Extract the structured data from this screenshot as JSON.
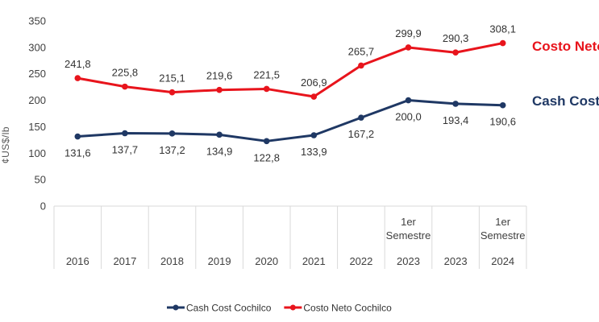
{
  "chart_data": {
    "type": "line",
    "title": "",
    "xlabel": "",
    "ylabel": "¢US$/lb",
    "ylim": [
      0,
      350
    ],
    "yticks": [
      0,
      50,
      100,
      150,
      200,
      250,
      300,
      350
    ],
    "categories": [
      {
        "label": [
          "",
          "2016"
        ]
      },
      {
        "label": [
          "",
          "2017"
        ]
      },
      {
        "label": [
          "",
          "2018"
        ]
      },
      {
        "label": [
          "",
          "2019"
        ]
      },
      {
        "label": [
          "",
          "2020"
        ]
      },
      {
        "label": [
          "",
          "2021"
        ]
      },
      {
        "label": [
          "",
          "2022"
        ]
      },
      {
        "label": [
          "1er Semestre",
          "2023"
        ]
      },
      {
        "label": [
          "",
          "2023"
        ]
      },
      {
        "label": [
          "1er Semestre",
          "2024"
        ]
      }
    ],
    "series": [
      {
        "name": "Cash Cost Cochilco",
        "annotation": "Cash Cost",
        "color": "#1f3864",
        "values": [
          131.6,
          137.7,
          137.2,
          134.9,
          122.8,
          133.9,
          167.2,
          200.0,
          193.4,
          190.6
        ],
        "labels": [
          "131,6",
          "137,7",
          "137,2",
          "134,9",
          "122,8",
          "133,9",
          "167,2",
          "200,0",
          "193,4",
          "190,6"
        ],
        "label_position": "below"
      },
      {
        "name": "Costo Neto Cochilco",
        "annotation": "Costo Neto",
        "color": "#e8141c",
        "values": [
          241.8,
          225.8,
          215.1,
          219.6,
          221.5,
          206.9,
          265.7,
          299.9,
          290.3,
          308.1
        ],
        "labels": [
          "241,8",
          "225,8",
          "215,1",
          "219,6",
          "221,5",
          "206,9",
          "265,7",
          "299,9",
          "290,3",
          "308,1"
        ],
        "label_position": "above"
      }
    ],
    "grid": false,
    "legend_position": "bottom-center"
  }
}
